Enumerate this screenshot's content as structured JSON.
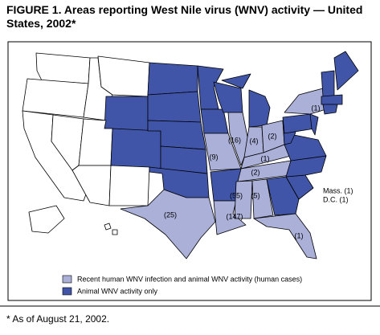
{
  "header": {
    "title": "FIGURE 1. Areas reporting West Nile virus (WNV) activity — United States, 2002*"
  },
  "legend": [
    {
      "label": "Recent human WNV infection and animal WNV activity (human cases)",
      "color": "#aab0d8"
    },
    {
      "label": "Animal WNV activity only",
      "color": "#4055a8"
    }
  ],
  "map_labels": [
    "(1)",
    "(16)",
    "(4)",
    "(2)",
    "(1)",
    "(2)",
    "(9)",
    "(25)",
    "(55)",
    "(5)",
    "(147)",
    "(1)",
    "Mass. (1)",
    "D.C. (1)"
  ],
  "footnote": "* As of August 21, 2002."
}
